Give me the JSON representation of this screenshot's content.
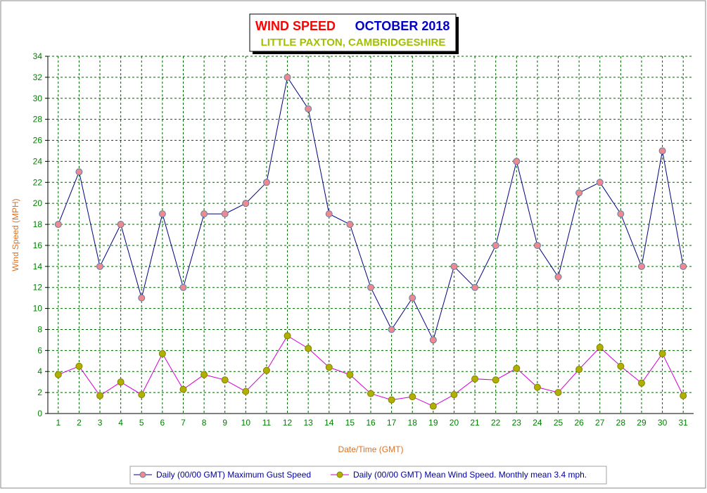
{
  "chart_data": {
    "type": "line",
    "title": "WIND SPEED",
    "subtitle": "OCTOBER 2018",
    "location": "LITTLE PAXTON, CAMBRIDGESHIRE",
    "y_label": "Wind Speed (MPH)",
    "x_label": "Date/Time (GMT)",
    "categories": [
      "1",
      "2",
      "3",
      "4",
      "5",
      "6",
      "7",
      "8",
      "9",
      "10",
      "11",
      "12",
      "13",
      "14",
      "15",
      "16",
      "17",
      "18",
      "19",
      "20",
      "21",
      "22",
      "23",
      "24",
      "25",
      "26",
      "27",
      "28",
      "29",
      "30",
      "31"
    ],
    "series": [
      {
        "name": "Daily (00/00 GMT) Maximum Gust Speed",
        "color": "#000080",
        "marker_color": "#f08890",
        "values": [
          18,
          23,
          14,
          18,
          11,
          19,
          12,
          19,
          19,
          20,
          22,
          32,
          29,
          19,
          18,
          12,
          8,
          11,
          7,
          14,
          12,
          16,
          24,
          16,
          13,
          21,
          22,
          19,
          14,
          25,
          14
        ]
      },
      {
        "name": "Daily (00/00 GMT) Mean Wind Speed. Monthly mean 3.4 mph.",
        "color": "#d000d0",
        "marker_color": "#b0b000",
        "values": [
          3.7,
          4.5,
          1.7,
          3.0,
          1.8,
          5.7,
          2.3,
          3.7,
          3.2,
          2.1,
          4.1,
          7.4,
          6.2,
          4.4,
          3.7,
          1.9,
          1.3,
          1.6,
          0.7,
          1.8,
          3.3,
          3.2,
          4.3,
          2.5,
          2.0,
          4.2,
          6.3,
          4.5,
          2.9,
          5.7,
          1.7
        ]
      }
    ],
    "ylim": [
      0,
      34
    ],
    "yticks": [
      0,
      2,
      4,
      6,
      8,
      10,
      12,
      14,
      16,
      18,
      20,
      22,
      24,
      26,
      28,
      30,
      32,
      34
    ],
    "grid": true
  }
}
